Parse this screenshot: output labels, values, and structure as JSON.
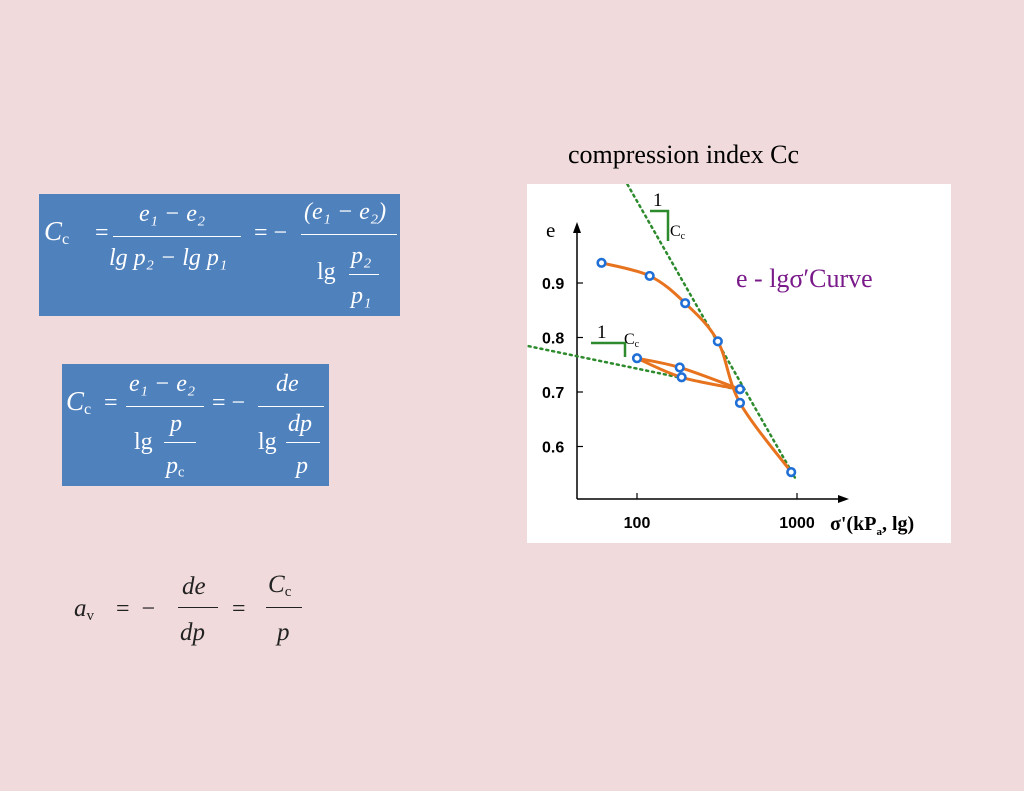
{
  "slide_title": "compression index Cc",
  "formula1": {
    "lhs": "C",
    "lhs_sub": "c",
    "f1_num": "e₁ − e₂",
    "f1_den": "lg p₂ − lg p₁",
    "f2_num": "(e₁ − e₂)",
    "f2_den_lg": "lg",
    "f2_den_num": "p₂",
    "f2_den_den": "p₁"
  },
  "formula2": {
    "lhs": "C",
    "lhs_sub": "c",
    "f1_num": "e₁ − e₂",
    "f1_den_lg": "lg",
    "f1_den_num": "p",
    "f1_den_den": "p",
    "f1_den_den_sub": "c",
    "f2_num": "de",
    "f2_den_lg": "lg",
    "f2_den_num": "dp",
    "f2_den_den": "p"
  },
  "formula3": {
    "lhs": "a",
    "lhs_sub": "v",
    "f1_num": "de",
    "f1_den": "dp",
    "f2_num": "C",
    "f2_num_sub": "c",
    "f2_den": "p"
  },
  "chart_data": {
    "type": "line",
    "x_scale": "log",
    "xlabel": "σ'(kP",
    "xlabel_sub": "a",
    "xlabel_tail": ",  lg)",
    "ylabel": "e",
    "x_ticks": [
      "100",
      "1000"
    ],
    "y_ticks": [
      "0.9",
      "0.8",
      "0.7",
      "0.6"
    ],
    "y_tick_values": [
      0.9,
      0.8,
      0.7,
      0.6
    ],
    "annotation": "e - lgσ′Curve",
    "colors": {
      "curve": "#e8731f",
      "point": "#1f6fd6",
      "tangent": "#2d8a2d",
      "annotation": "#7a1a8a"
    },
    "series": [
      {
        "values": [
          {
            "x": 60,
            "y": 0.937
          },
          {
            "x": 120,
            "y": 0.913
          },
          {
            "x": 200,
            "y": 0.863
          },
          {
            "x": 320,
            "y": 0.793
          },
          {
            "x": 440,
            "y": 0.68
          },
          {
            "x": 920,
            "y": 0.553
          }
        ]
      },
      {
        "values": [
          {
            "x": 100,
            "y": 0.762
          },
          {
            "x": 185,
            "y": 0.745
          },
          {
            "x": 440,
            "y": 0.705
          }
        ]
      },
      {
        "values": [
          {
            "x": 440,
            "y": 0.705
          },
          {
            "x": 190,
            "y": 0.727
          },
          {
            "x": 100,
            "y": 0.762
          }
        ]
      }
    ],
    "tangents": [
      {
        "from": {
          "x": 80,
          "y": 1.1
        },
        "to": {
          "x": 970,
          "y": 0.543
        }
      },
      {
        "from": {
          "x": 15,
          "y": 0.793
        },
        "to": {
          "x": 420,
          "y": 0.705
        }
      }
    ],
    "slope_marks": [
      {
        "one": "1",
        "label": "C",
        "label_sub": "c"
      },
      {
        "one": "1",
        "label": "C",
        "label_sub": "c"
      }
    ]
  }
}
